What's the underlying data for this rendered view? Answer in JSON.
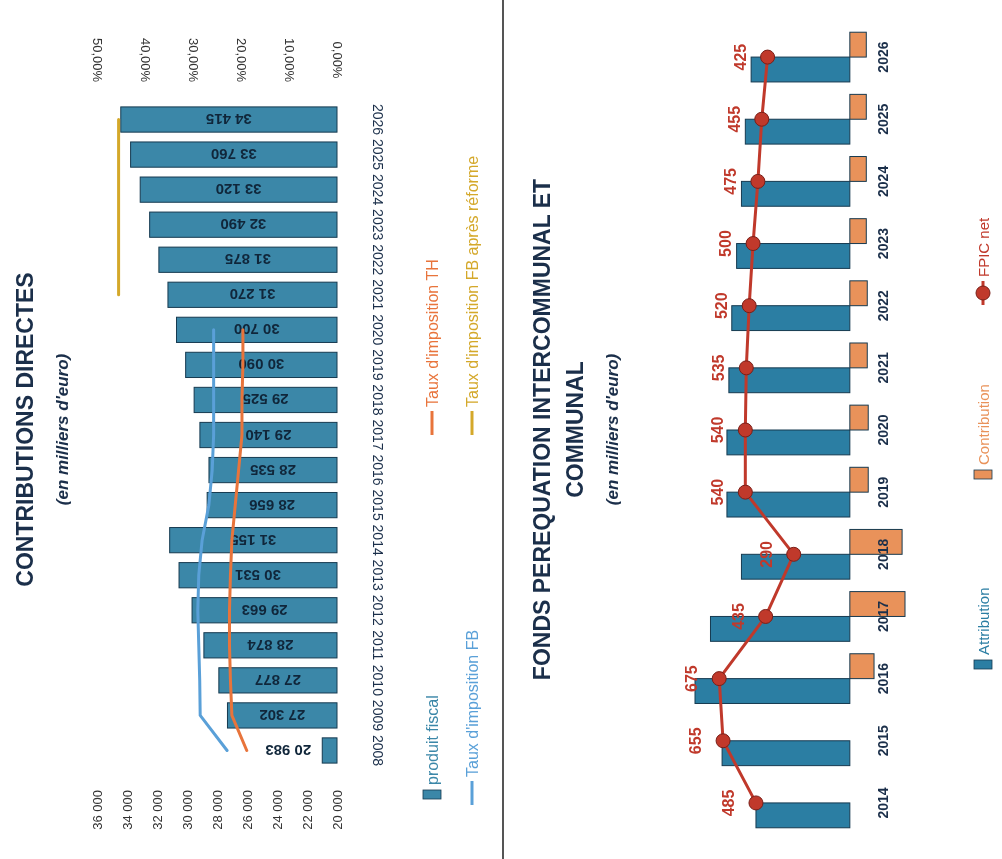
{
  "chart_data": [
    {
      "type": "bar",
      "orientation": "horizontal",
      "title": "CONTRIBUTIONS DIRECTES",
      "subtitle": "(en milliers d'euro)",
      "categories": [
        "2026",
        "2025",
        "2024",
        "2023",
        "2022",
        "2021",
        "2020",
        "2019",
        "2018",
        "2017",
        "2016",
        "2015",
        "2014",
        "2013",
        "2012",
        "2011",
        "2010",
        "2009",
        "2008"
      ],
      "series": [
        {
          "name": "produit fiscal",
          "color": "#3b87a8",
          "values": [
            34415,
            33760,
            33120,
            32490,
            31875,
            31270,
            30700,
            30090,
            29525,
            29140,
            28535,
            28656,
            31155,
            30531,
            29663,
            28874,
            27877,
            27302,
            20983
          ],
          "value_labels": [
            "34 415",
            "33 760",
            "33 120",
            "32 490",
            "31 875",
            "31 270",
            "30 700",
            "30 090",
            "29 525",
            "29 140",
            "28 535",
            "28 656",
            "31 155",
            "30 531",
            "29 663",
            "28 874",
            "27 877",
            "27 302",
            "20 983"
          ]
        },
        {
          "name": "Taux d'imposition FB",
          "type": "line",
          "axis": "x2",
          "color": "#5aa0d8",
          "values": [
            null,
            null,
            null,
            null,
            null,
            null,
            25.7,
            25.7,
            25.7,
            25.7,
            26.0,
            26.7,
            28.1,
            28.8,
            29.0,
            28.8,
            28.6,
            28.5,
            22.9
          ]
        },
        {
          "name": "Taux d'imposition TH",
          "type": "line",
          "axis": "x2",
          "color": "#e8743b",
          "values": [
            null,
            null,
            null,
            null,
            null,
            null,
            19.6,
            19.6,
            19.8,
            19.8,
            20.5,
            21.2,
            21.9,
            22.2,
            22.4,
            22.4,
            22.2,
            21.9,
            18.8
          ]
        },
        {
          "name": "Taux d'imposition FB après réforme",
          "type": "line",
          "axis": "x2",
          "color": "#d4a82a",
          "values": [
            45.5,
            45.5,
            45.5,
            45.5,
            45.5,
            45.5,
            null,
            null,
            null,
            null,
            null,
            null,
            null,
            null,
            null,
            null,
            null,
            null,
            null
          ]
        }
      ],
      "xlim": [
        36000,
        20000
      ],
      "xticks": [
        {
          "value": 36000,
          "label": "36 000"
        },
        {
          "value": 34000,
          "label": "34 000"
        },
        {
          "value": 32000,
          "label": "32 000"
        },
        {
          "value": 30000,
          "label": "30 000"
        },
        {
          "value": 28000,
          "label": "28 000"
        },
        {
          "value": 26000,
          "label": "26 000"
        },
        {
          "value": 24000,
          "label": "24 000"
        },
        {
          "value": 22000,
          "label": "22 000"
        },
        {
          "value": 20000,
          "label": "20 000"
        }
      ],
      "x2lim": [
        50,
        0
      ],
      "x2ticks": [
        {
          "value": 50,
          "label": "50,00%"
        },
        {
          "value": 40,
          "label": "40,00%"
        },
        {
          "value": 30,
          "label": "30,00%"
        },
        {
          "value": 20,
          "label": "20,00%"
        },
        {
          "value": 10,
          "label": "10,00%"
        },
        {
          "value": 0,
          "label": "0,00%"
        }
      ],
      "legend": "bottom"
    },
    {
      "type": "bar",
      "orientation": "horizontal",
      "title": "FONDS PEREQUATION INTERCOMMUNAL ET COMMUNAL",
      "subtitle": "(en milliers d'euro)",
      "categories": [
        "2026",
        "2025",
        "2024",
        "2023",
        "2022",
        "2021",
        "2020",
        "2019",
        "2018",
        "2017",
        "2016",
        "2015",
        "2014"
      ],
      "series": [
        {
          "name": "Attribution",
          "color": "#2b7ea3",
          "values": [
            510,
            540,
            560,
            585,
            610,
            625,
            635,
            635,
            560,
            720,
            800,
            660,
            485
          ]
        },
        {
          "name": "Contribution",
          "color": "#e9925a",
          "values": [
            -85,
            -85,
            -85,
            -85,
            -90,
            -90,
            -95,
            -95,
            -270,
            -285,
            -125,
            null,
            null
          ]
        },
        {
          "name": "FPIC net",
          "type": "line",
          "color": "#c0392b",
          "values": [
            425,
            455,
            475,
            500,
            520,
            535,
            540,
            540,
            290,
            435,
            675,
            655,
            485
          ],
          "value_labels": [
            "425",
            "455",
            "475",
            "500",
            "520",
            "535",
            "540",
            "540",
            "290",
            "435",
            "675",
            "655",
            "485"
          ]
        }
      ],
      "tick_labels": "y",
      "marker": "circle",
      "legend": "bottom"
    }
  ]
}
